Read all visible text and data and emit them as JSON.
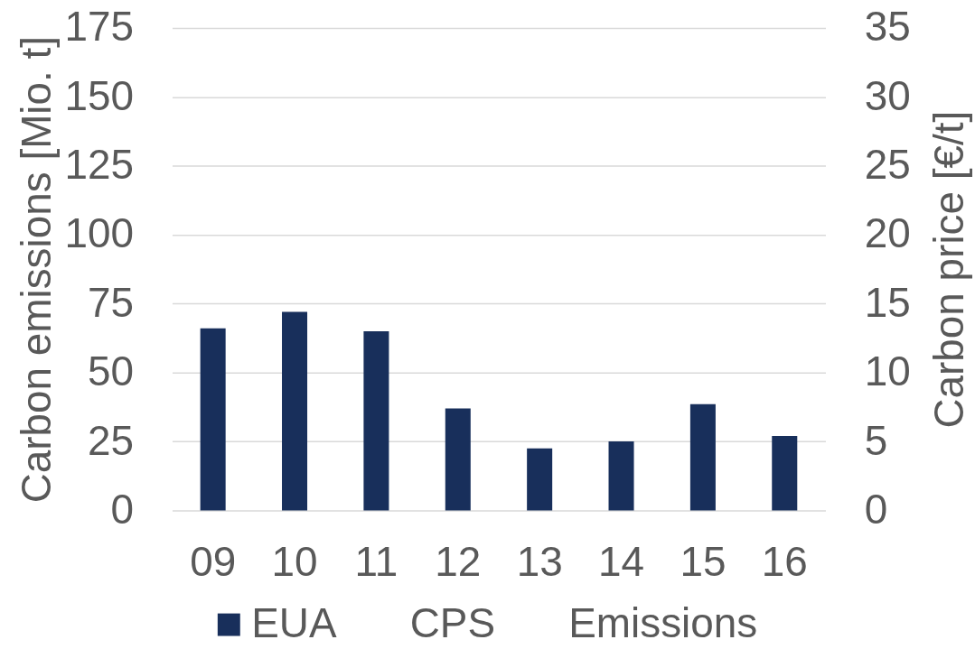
{
  "chart_data": {
    "type": "bar",
    "categories": [
      "09",
      "10",
      "11",
      "12",
      "13",
      "14",
      "15",
      "16"
    ],
    "ylabel": "Carbon emissions [Mio. t]",
    "y2label": "Carbon price [€/t]",
    "ylim": [
      0,
      175
    ],
    "yticks": [
      0,
      25,
      50,
      75,
      100,
      125,
      150,
      175
    ],
    "y2lim": [
      0,
      35
    ],
    "y2ticks": [
      0,
      5,
      10,
      15,
      20,
      25,
      30,
      35
    ],
    "grid": "y",
    "legend": "bottom",
    "series": [
      {
        "name": "EUA",
        "color": "#182f5b",
        "axis": "y2",
        "values": [
          13.2,
          14.4,
          13.0,
          7.4,
          4.5,
          5.0,
          7.7,
          5.4
        ]
      },
      {
        "name": "CPS",
        "axis": "y2",
        "values": [
          null,
          null,
          null,
          null,
          null,
          null,
          null,
          null
        ]
      },
      {
        "name": "Emissions",
        "axis": "y",
        "values": [
          null,
          null,
          null,
          null,
          null,
          null,
          null,
          null
        ]
      }
    ]
  }
}
